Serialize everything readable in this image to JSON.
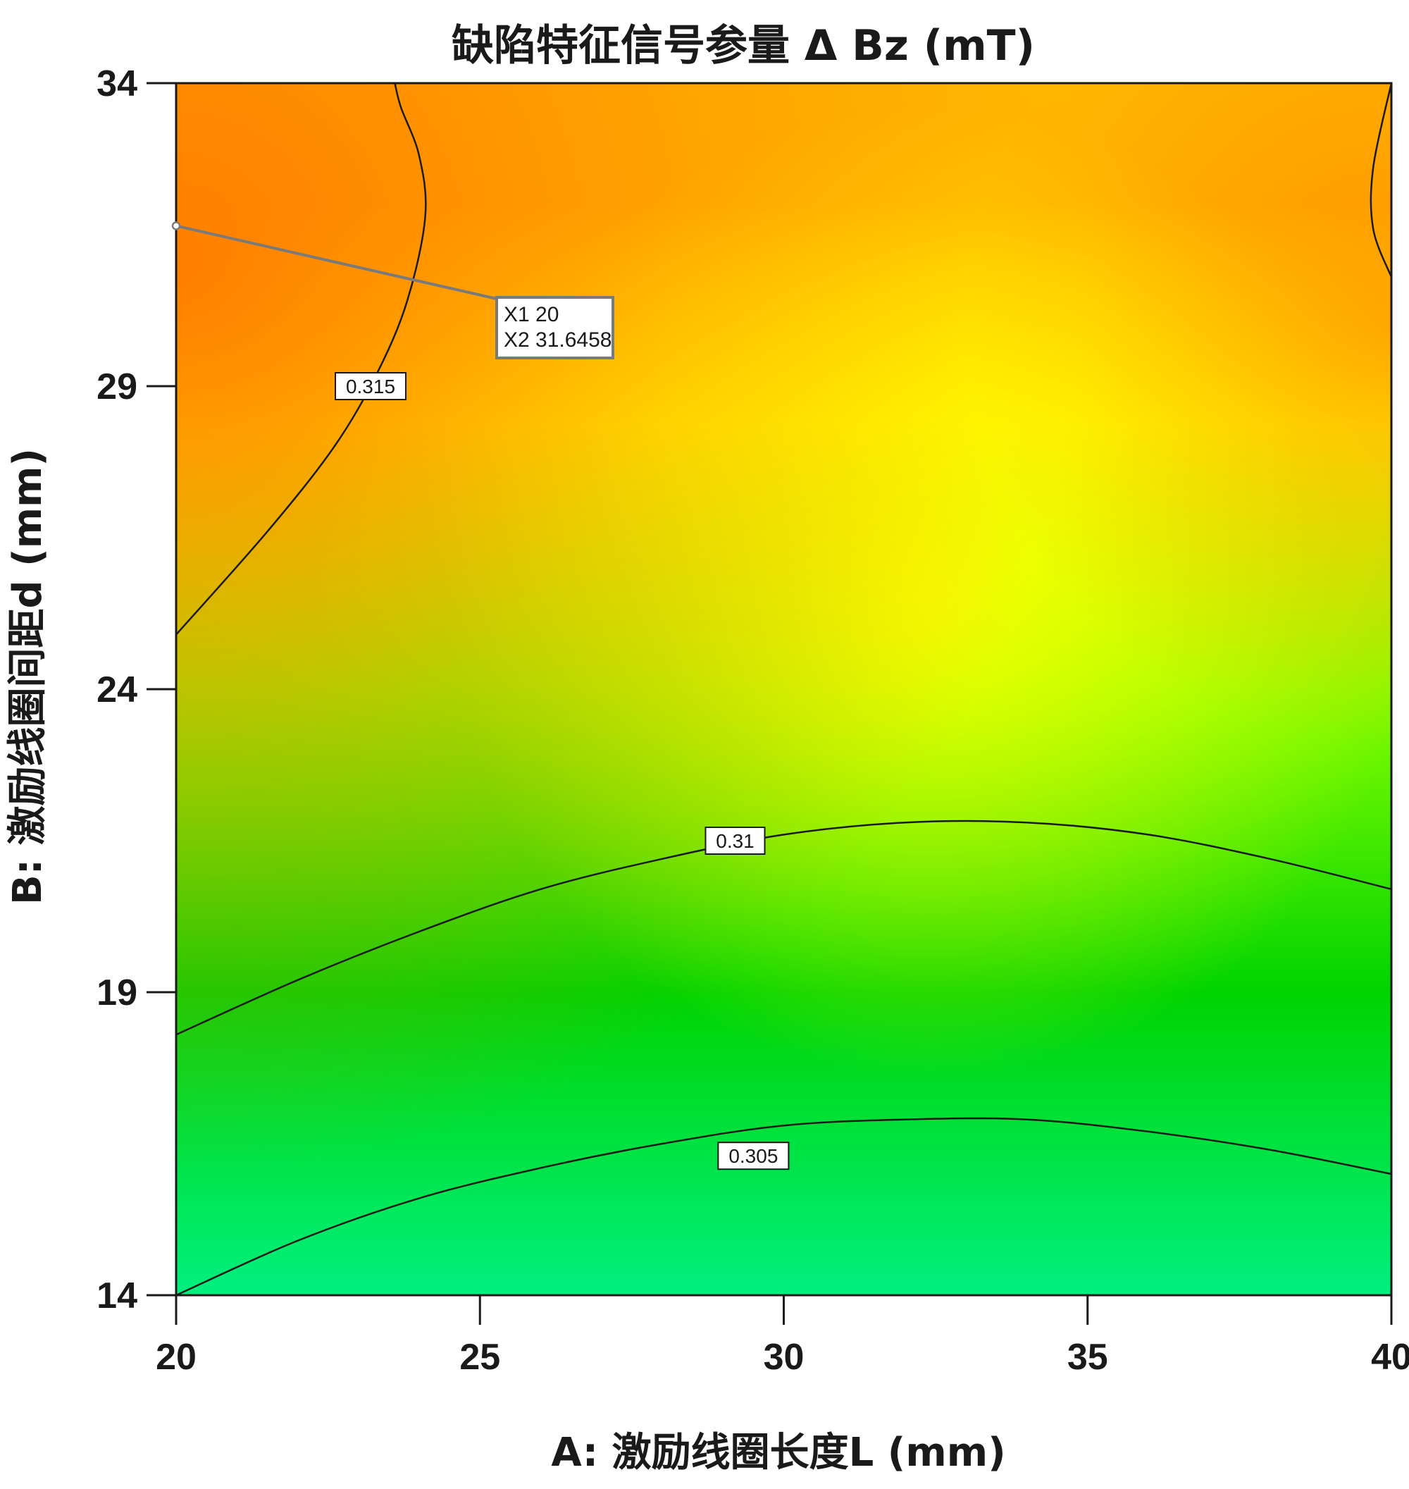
{
  "chart_data": {
    "type": "heatmap",
    "subtype": "contour",
    "title": "缺陷特征信号参量 Δ Bz (mT)",
    "xlabel": "A: 激励线圈长度L (mm)",
    "ylabel": "B: 激励线圈间距d (mm)",
    "xlim": [
      20,
      40
    ],
    "ylim": [
      14,
      34
    ],
    "xticks": [
      "20",
      "25",
      "30",
      "35",
      "40"
    ],
    "yticks": [
      "14",
      "19",
      "24",
      "29",
      "34"
    ],
    "grid": false,
    "colorscale": [
      "#00f080",
      "#00d400",
      "#88ff00",
      "#ffff00",
      "#ffb800",
      "#ff7a00"
    ],
    "contours": [
      {
        "level": "0.315",
        "segments": [
          [
            [
              20,
              24.9
            ],
            [
              21.5,
              26.6
            ],
            [
              22.6,
              28.0
            ],
            [
              23.3,
              29.2
            ],
            [
              23.8,
              30.4
            ],
            [
              24.1,
              31.8
            ],
            [
              24.0,
              32.8
            ],
            [
              23.7,
              33.6
            ],
            [
              23.6,
              34
            ]
          ],
          [
            [
              40,
              30.8
            ],
            [
              39.7,
              31.6
            ],
            [
              39.7,
              32.6
            ],
            [
              40,
              34
            ]
          ]
        ],
        "label_at": [
          23.2,
          29.0
        ]
      },
      {
        "level": "0.31",
        "segments": [
          [
            [
              20,
              18.3
            ],
            [
              22,
              19.2
            ],
            [
              24,
              20.0
            ],
            [
              26,
              20.7
            ],
            [
              28,
              21.2
            ],
            [
              30,
              21.6
            ],
            [
              32,
              21.8
            ],
            [
              34,
              21.8
            ],
            [
              36,
              21.6
            ],
            [
              38,
              21.2
            ],
            [
              40,
              20.7
            ]
          ]
        ],
        "label_at": [
          29.2,
          21.5
        ]
      },
      {
        "level": "0.305",
        "segments": [
          [
            [
              20,
              14.0
            ],
            [
              22,
              14.9
            ],
            [
              24,
              15.6
            ],
            [
              26,
              16.1
            ],
            [
              28,
              16.5
            ],
            [
              30,
              16.8
            ],
            [
              32,
              16.9
            ],
            [
              34,
              16.9
            ],
            [
              36,
              16.7
            ],
            [
              38,
              16.4
            ],
            [
              40,
              16.0
            ]
          ]
        ],
        "label_at": [
          29.5,
          16.3
        ]
      }
    ],
    "annotation": {
      "point": [
        20,
        31.6458
      ],
      "lines": [
        "X1 20",
        "X2 31.6458"
      ]
    }
  }
}
